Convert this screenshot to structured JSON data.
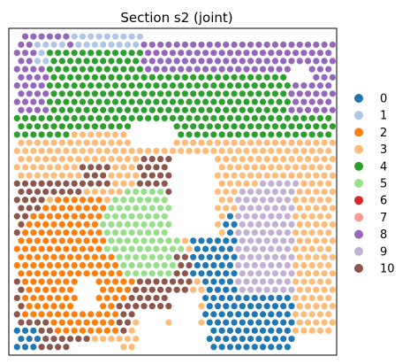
{
  "chart_data": {
    "type": "scatter",
    "title": "Section s2 (joint)",
    "xlabel": "",
    "ylabel": "",
    "grid": false,
    "axis_ticks": false,
    "legend_placement": "right",
    "xlim": [
      0,
      40
    ],
    "ylim": [
      0,
      40
    ],
    "spot_grid": {
      "cols": 39,
      "rows": 39,
      "row_stagger": true
    },
    "categories": [
      "0",
      "1",
      "2",
      "3",
      "4",
      "5",
      "6",
      "7",
      "8",
      "9",
      "10"
    ],
    "colors": [
      "#1f77b4",
      "#aec7e8",
      "#ff7f0e",
      "#ffbb78",
      "#2ca02c",
      "#98df8a",
      "#d62728",
      "#ff9896",
      "#9467bd",
      "#c5b0d5",
      "#8c564b"
    ],
    "regions": [
      {
        "cluster": "8",
        "shape": "rect",
        "x": [
          0.5,
          39.5
        ],
        "y": [
          28.5,
          39.5
        ]
      },
      {
        "cluster": "1",
        "shape": "rect",
        "x": [
          8,
          16
        ],
        "y": [
          37.5,
          39.5
        ]
      },
      {
        "cluster": "1",
        "shape": "rect",
        "x": [
          3.5,
          6.5
        ],
        "y": [
          35.5,
          38
        ]
      },
      {
        "cluster": "4",
        "shape": "rect",
        "x": [
          5,
          16
        ],
        "y": [
          29,
          37
        ]
      },
      {
        "cluster": "4",
        "shape": "rect",
        "x": [
          16,
          34
        ],
        "y": [
          28,
          34
        ]
      },
      {
        "cluster": "4",
        "shape": "rect",
        "x": [
          0.5,
          39.5
        ],
        "y": [
          26.5,
          29
        ]
      },
      {
        "cluster": "4",
        "shape": "rect",
        "x": [
          34,
          39.5
        ],
        "y": [
          23.5,
          28
        ]
      },
      {
        "cluster": "4",
        "shape": "rect",
        "x": [
          0.5,
          3.5
        ],
        "y": [
          26,
          27
        ]
      },
      {
        "cluster": "3",
        "shape": "rect",
        "x": [
          0.5,
          39.5
        ],
        "y": [
          0.5,
          26.5
        ]
      },
      {
        "cluster": "3",
        "shape": "rect",
        "x": [
          8,
          20
        ],
        "y": [
          26,
          27.5
        ]
      },
      {
        "cluster": "10",
        "shape": "rect",
        "x": [
          0.5,
          4.5
        ],
        "y": [
          0.5,
          21
        ]
      },
      {
        "cluster": "10",
        "shape": "rect",
        "x": [
          0.5,
          8.5
        ],
        "y": [
          20,
          21.5
        ]
      },
      {
        "cluster": "10",
        "shape": "rect",
        "x": [
          2.5,
          9.5
        ],
        "y": [
          0.5,
          4.5
        ]
      },
      {
        "cluster": "10",
        "shape": "rect",
        "x": [
          13,
          14.5
        ],
        "y": [
          3,
          13
        ]
      },
      {
        "cluster": "10",
        "shape": "rect",
        "x": [
          14,
          22
        ],
        "y": [
          5,
          12
        ]
      },
      {
        "cluster": "10",
        "shape": "rect",
        "x": [
          16,
          22
        ],
        "y": [
          19,
          24
        ]
      },
      {
        "cluster": "10",
        "shape": "rect",
        "x": [
          9,
          12
        ],
        "y": [
          21,
          23.5
        ]
      },
      {
        "cluster": "2",
        "shape": "circle",
        "cx": 8.5,
        "cy": 12,
        "r": 7.8
      },
      {
        "cluster": "2",
        "shape": "rect",
        "x": [
          5.5,
          13
        ],
        "y": [
          3,
          6
        ]
      },
      {
        "cluster": "2",
        "shape": "rect",
        "x": [
          2,
          12
        ],
        "y": [
          5,
          9
        ]
      },
      {
        "cluster": "5",
        "shape": "circle",
        "cx": 16.5,
        "cy": 15.5,
        "r": 5.2
      },
      {
        "cluster": "5",
        "shape": "rect",
        "x": [
          14,
          20
        ],
        "y": [
          10,
          14
        ]
      },
      {
        "cluster": "0",
        "shape": "rect",
        "x": [
          24,
          35
        ],
        "y": [
          0.5,
          13
        ]
      },
      {
        "cluster": "0",
        "shape": "rect",
        "x": [
          26.5,
          30.5
        ],
        "y": [
          12,
          17
        ]
      },
      {
        "cluster": "0",
        "shape": "rect",
        "x": [
          22.5,
          26
        ],
        "y": [
          10,
          14
        ]
      },
      {
        "cluster": "0",
        "shape": "rect",
        "x": [
          0.5,
          3.5
        ],
        "y": [
          0.5,
          3
        ]
      },
      {
        "cluster": "9",
        "shape": "rect",
        "x": [
          28,
          36
        ],
        "y": [
          8,
          20
        ]
      },
      {
        "cluster": "9",
        "shape": "rect",
        "x": [
          31,
          35
        ],
        "y": [
          19,
          21
        ]
      },
      {
        "cluster": "3",
        "shape": "rect",
        "x": [
          35,
          39.5
        ],
        "y": [
          0.5,
          8
        ]
      },
      {
        "cluster": "3",
        "shape": "rect",
        "x": [
          35,
          39.5
        ],
        "y": [
          8,
          20
        ]
      }
    ],
    "holes": [
      {
        "shape": "rect",
        "x": [
          20,
          25
        ],
        "y": [
          15,
          24
        ]
      },
      {
        "shape": "rect",
        "x": [
          15,
          20
        ],
        "y": [
          26,
          28
        ]
      },
      {
        "shape": "rect",
        "x": [
          8.5,
          10.5
        ],
        "y": [
          6,
          9
        ]
      },
      {
        "shape": "rect",
        "x": [
          16,
          19
        ],
        "y": [
          3,
          5
        ]
      },
      {
        "shape": "rect",
        "x": [
          20,
          23
        ],
        "y": [
          0.5,
          7
        ]
      },
      {
        "shape": "rect",
        "x": [
          16,
          24
        ],
        "y": [
          0.5,
          3
        ]
      },
      {
        "shape": "rect",
        "x": [
          8,
          13
        ],
        "y": [
          0.5,
          1.5
        ]
      },
      {
        "shape": "rect",
        "x": [
          35,
          39.5
        ],
        "y": [
          0.5,
          2
        ]
      },
      {
        "shape": "rect",
        "x": [
          34.5,
          36.5
        ],
        "y": [
          33.5,
          35
        ]
      },
      {
        "shape": "rect",
        "x": [
          0.5,
          1.5
        ],
        "y": [
          38.5,
          39.5
        ]
      },
      {
        "shape": "rect",
        "x": [
          17,
          39.5
        ],
        "y": [
          38.5,
          39.5
        ]
      }
    ]
  }
}
